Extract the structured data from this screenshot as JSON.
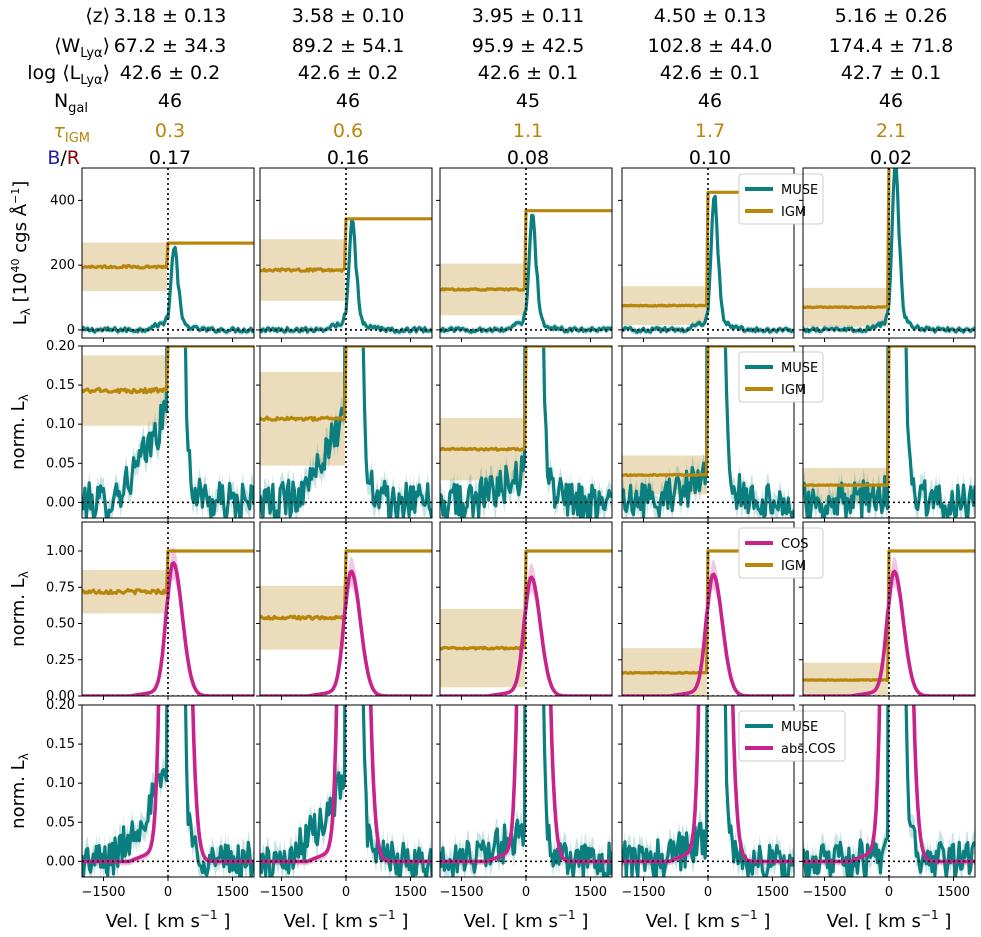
{
  "header": {
    "labels": {
      "z": "⟨z⟩",
      "W": "⟨W",
      "W_sub": "Lyα",
      "W_close": "⟩",
      "L": "log ⟨L",
      "L_sub": "Lyα",
      "L_close": "⟩",
      "N": "N",
      "N_sub": "gal",
      "tau": "τ",
      "tau_sub": "IGM",
      "B": "B",
      "slash": "/",
      "R": "R"
    },
    "columns": [
      {
        "z": "3.18 ± 0.13",
        "W": "67.2 ± 34.3",
        "L": "42.6 ± 0.2",
        "N": "46",
        "tau": "0.3",
        "BR": "0.17"
      },
      {
        "z": "3.58 ± 0.10",
        "W": "89.2 ± 54.1",
        "L": "42.6 ± 0.2",
        "N": "46",
        "tau": "0.6",
        "BR": "0.16"
      },
      {
        "z": "3.95 ± 0.11",
        "W": "95.9 ± 42.5",
        "L": "42.6 ± 0.1",
        "N": "45",
        "tau": "1.1",
        "BR": "0.08"
      },
      {
        "z": "4.50 ± 0.13",
        "W": "102.8 ± 44.0",
        "L": "42.6 ± 0.1",
        "N": "46",
        "tau": "1.7",
        "BR": "0.10"
      },
      {
        "z": "5.16 ± 0.26",
        "W": "174.4 ± 71.8",
        "L": "42.7 ± 0.1",
        "N": "46",
        "tau": "2.1",
        "BR": "0.02"
      }
    ]
  },
  "colors": {
    "muse": "#0b7f7f",
    "igm": "#b8860b",
    "igm_band": "#e8d6b0",
    "cos": "#c8228c",
    "tau": "#b8860b",
    "blue": "#1f1f9c",
    "red": "#8b0000"
  },
  "chart_data": {
    "type": "line",
    "xlabel": "Vel. [ km s",
    "xlabel_sup": "−1",
    "xlabel_close": "]",
    "xlim": [
      -2000,
      2000
    ],
    "xticks": [
      -1500,
      0,
      1500
    ],
    "xtick_labels": [
      "−1500",
      "0",
      "1500"
    ],
    "rows": [
      {
        "ylabel": "L",
        "ylabel_sub": "λ",
        "ylabel_rest": " [10",
        "ylabel_sup": "40",
        "ylabel_rest2": " cgs Å",
        "ylabel_sup2": "−1",
        "ylabel_close": "]",
        "ylim": [
          -25,
          500
        ],
        "yticks": [
          0,
          200,
          400
        ],
        "ytick_labels": [
          "0",
          "200",
          "400"
        ],
        "legend": [
          "MUSE",
          "IGM"
        ],
        "legend_panel": 3,
        "series": [
          "MUSE",
          "IGM"
        ],
        "peak": [
          260,
          345,
          360,
          415,
          520
        ],
        "igm_blue": [
          195,
          185,
          125,
          75,
          70
        ],
        "igm_red": [
          268,
          343,
          368,
          425,
          530
        ],
        "igm_band_half": [
          75,
          95,
          80,
          60,
          60
        ],
        "muse_blue": [
          5,
          5,
          5,
          5,
          5
        ]
      },
      {
        "ylabel": "norm. L",
        "ylabel_sub": "λ",
        "ylim": [
          -0.02,
          0.2
        ],
        "yticks": [
          0.0,
          0.05,
          0.1,
          0.15,
          0.2
        ],
        "ytick_labels": [
          "0.00",
          "0.05",
          "0.10",
          "0.15",
          "0.20"
        ],
        "legend": [
          "MUSE",
          "IGM"
        ],
        "legend_panel": 3,
        "series": [
          "MUSE",
          "IGM"
        ],
        "igm_blue": [
          0.143,
          0.107,
          0.068,
          0.035,
          0.022
        ],
        "igm_red": [
          0.2,
          0.2,
          0.2,
          0.2,
          0.2
        ],
        "igm_band_half": [
          0.045,
          0.06,
          0.04,
          0.025,
          0.022
        ],
        "muse_blue": [
          0.12,
          0.11,
          0.04,
          0.03,
          0.01
        ]
      },
      {
        "ylabel": "norm. L",
        "ylabel_sub": "λ",
        "ylim": [
          0.0,
          1.2
        ],
        "yticks": [
          0.0,
          0.25,
          0.5,
          0.75,
          1.0
        ],
        "ytick_labels": [
          "0.00",
          "0.25",
          "0.50",
          "0.75",
          "1.00"
        ],
        "legend": [
          "COS",
          "IGM"
        ],
        "legend_panel": 3,
        "series": [
          "COS",
          "IGM"
        ],
        "igm_blue": [
          0.72,
          0.54,
          0.33,
          0.16,
          0.11
        ],
        "igm_red": [
          1.0,
          1.0,
          1.0,
          1.0,
          1.0
        ],
        "igm_band_half": [
          0.15,
          0.22,
          0.27,
          0.17,
          0.12
        ],
        "cos_peak": [
          0.92,
          0.86,
          0.82,
          0.84,
          0.86
        ]
      },
      {
        "ylabel": "norm. L",
        "ylabel_sub": "λ",
        "ylim": [
          -0.02,
          0.2
        ],
        "yticks": [
          0.0,
          0.05,
          0.1,
          0.15,
          0.2
        ],
        "ytick_labels": [
          "0.00",
          "0.05",
          "0.10",
          "0.15",
          "0.20"
        ],
        "legend": [
          "MUSE",
          "abs.COS"
        ],
        "legend_panel": 3,
        "series": [
          "MUSE",
          "abs.COS"
        ],
        "muse_blue": [
          0.12,
          0.11,
          0.04,
          0.03,
          0.01
        ]
      }
    ]
  }
}
